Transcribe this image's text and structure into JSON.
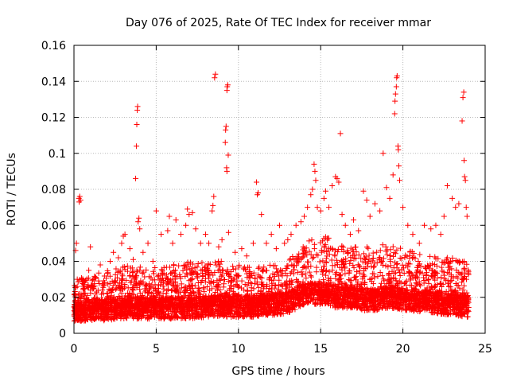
{
  "chart_data": {
    "type": "scatter",
    "title": "Day 076 of 2025, Rate Of TEC Index for receiver mmar",
    "xlabel": "GPS time / hours",
    "ylabel": "ROTI / TECUs",
    "xlim": [
      0,
      25
    ],
    "ylim": [
      0,
      0.16
    ],
    "x_ticks": [
      0,
      5,
      10,
      15,
      20,
      25
    ],
    "x_tick_labels": [
      "0",
      "5",
      "10",
      "15",
      "20",
      "25"
    ],
    "y_ticks": [
      0,
      0.02,
      0.04,
      0.06,
      0.08,
      0.1,
      0.12,
      0.14,
      0.16
    ],
    "y_tick_labels": [
      "0",
      "0.02",
      "0.04",
      "0.06",
      "0.08",
      "0.1",
      "0.12",
      "0.14",
      "0.16"
    ],
    "grid": true,
    "marker": "+",
    "color": "#ff0000",
    "series": [
      {
        "name": "ROTI",
        "points": [
          [
            0.1,
            0.046
          ],
          [
            0.15,
            0.05
          ],
          [
            0.3,
            0.075
          ],
          [
            0.32,
            0.073
          ],
          [
            0.35,
            0.076
          ],
          [
            0.4,
            0.074
          ],
          [
            0.2,
            0.03
          ],
          [
            0.6,
            0.025
          ],
          [
            0.9,
            0.035
          ],
          [
            1.0,
            0.048
          ],
          [
            1.3,
            0.031
          ],
          [
            1.6,
            0.038
          ],
          [
            2.0,
            0.022
          ],
          [
            2.2,
            0.04
          ],
          [
            2.4,
            0.045
          ],
          [
            2.7,
            0.042
          ],
          [
            2.9,
            0.05
          ],
          [
            3.0,
            0.054
          ],
          [
            3.1,
            0.055
          ],
          [
            3.4,
            0.047
          ],
          [
            3.6,
            0.041
          ],
          [
            3.75,
            0.086
          ],
          [
            3.8,
            0.104
          ],
          [
            3.82,
            0.116
          ],
          [
            3.85,
            0.124
          ],
          [
            3.87,
            0.126
          ],
          [
            3.9,
            0.062
          ],
          [
            3.95,
            0.064
          ],
          [
            4.0,
            0.058
          ],
          [
            4.2,
            0.045
          ],
          [
            4.5,
            0.05
          ],
          [
            4.8,
            0.04
          ],
          [
            5.0,
            0.068
          ],
          [
            5.3,
            0.055
          ],
          [
            5.7,
            0.057
          ],
          [
            5.8,
            0.065
          ],
          [
            6.0,
            0.05
          ],
          [
            6.2,
            0.063
          ],
          [
            6.5,
            0.055
          ],
          [
            6.8,
            0.06
          ],
          [
            6.9,
            0.069
          ],
          [
            7.0,
            0.066
          ],
          [
            7.2,
            0.067
          ],
          [
            7.4,
            0.058
          ],
          [
            7.7,
            0.05
          ],
          [
            8.0,
            0.055
          ],
          [
            8.2,
            0.05
          ],
          [
            8.4,
            0.068
          ],
          [
            8.45,
            0.071
          ],
          [
            8.5,
            0.076
          ],
          [
            8.55,
            0.142
          ],
          [
            8.6,
            0.144
          ],
          [
            8.8,
            0.048
          ],
          [
            9.0,
            0.052
          ],
          [
            9.2,
            0.106
          ],
          [
            9.22,
            0.113
          ],
          [
            9.25,
            0.115
          ],
          [
            9.28,
            0.092
          ],
          [
            9.3,
            0.09
          ],
          [
            9.3,
            0.135
          ],
          [
            9.32,
            0.137
          ],
          [
            9.35,
            0.138
          ],
          [
            9.38,
            0.099
          ],
          [
            9.4,
            0.056
          ],
          [
            9.8,
            0.045
          ],
          [
            10.2,
            0.047
          ],
          [
            10.5,
            0.043
          ],
          [
            10.9,
            0.05
          ],
          [
            11.1,
            0.084
          ],
          [
            11.15,
            0.077
          ],
          [
            11.2,
            0.078
          ],
          [
            11.4,
            0.066
          ],
          [
            11.7,
            0.05
          ],
          [
            12.0,
            0.055
          ],
          [
            12.3,
            0.047
          ],
          [
            12.5,
            0.06
          ],
          [
            12.8,
            0.05
          ],
          [
            13.0,
            0.052
          ],
          [
            13.2,
            0.055
          ],
          [
            13.5,
            0.06
          ],
          [
            13.8,
            0.062
          ],
          [
            14.0,
            0.065
          ],
          [
            14.2,
            0.07
          ],
          [
            14.4,
            0.077
          ],
          [
            14.5,
            0.08
          ],
          [
            14.6,
            0.094
          ],
          [
            14.65,
            0.09
          ],
          [
            14.7,
            0.085
          ],
          [
            14.8,
            0.07
          ],
          [
            15.0,
            0.068
          ],
          [
            15.2,
            0.075
          ],
          [
            15.3,
            0.079
          ],
          [
            15.5,
            0.07
          ],
          [
            15.7,
            0.082
          ],
          [
            15.9,
            0.087
          ],
          [
            16.0,
            0.086
          ],
          [
            16.1,
            0.084
          ],
          [
            16.2,
            0.111
          ],
          [
            16.3,
            0.066
          ],
          [
            16.5,
            0.06
          ],
          [
            16.8,
            0.055
          ],
          [
            17.0,
            0.063
          ],
          [
            17.3,
            0.057
          ],
          [
            17.6,
            0.079
          ],
          [
            17.8,
            0.074
          ],
          [
            18.0,
            0.065
          ],
          [
            18.3,
            0.072
          ],
          [
            18.6,
            0.068
          ],
          [
            18.8,
            0.1
          ],
          [
            19.0,
            0.081
          ],
          [
            19.2,
            0.075
          ],
          [
            19.4,
            0.088
          ],
          [
            19.5,
            0.122
          ],
          [
            19.52,
            0.129
          ],
          [
            19.55,
            0.133
          ],
          [
            19.6,
            0.137
          ],
          [
            19.62,
            0.142
          ],
          [
            19.65,
            0.143
          ],
          [
            19.7,
            0.104
          ],
          [
            19.72,
            0.102
          ],
          [
            19.75,
            0.093
          ],
          [
            19.8,
            0.085
          ],
          [
            20.0,
            0.07
          ],
          [
            20.3,
            0.06
          ],
          [
            20.6,
            0.055
          ],
          [
            21.0,
            0.05
          ],
          [
            21.3,
            0.06
          ],
          [
            21.7,
            0.058
          ],
          [
            22.0,
            0.06
          ],
          [
            22.3,
            0.055
          ],
          [
            22.5,
            0.065
          ],
          [
            22.7,
            0.082
          ],
          [
            23.0,
            0.075
          ],
          [
            23.2,
            0.07
          ],
          [
            23.4,
            0.072
          ],
          [
            23.6,
            0.118
          ],
          [
            23.65,
            0.131
          ],
          [
            23.7,
            0.134
          ],
          [
            23.72,
            0.096
          ],
          [
            23.75,
            0.087
          ],
          [
            23.8,
            0.085
          ],
          [
            23.85,
            0.07
          ],
          [
            23.9,
            0.065
          ]
        ],
        "dense_band": {
          "x_range": [
            0.0,
            24.0
          ],
          "baseline_profile": [
            [
              0,
              0.012
            ],
            [
              1,
              0.013
            ],
            [
              2,
              0.013
            ],
            [
              3,
              0.014
            ],
            [
              4,
              0.014
            ],
            [
              5,
              0.014
            ],
            [
              6,
              0.014
            ],
            [
              7,
              0.014
            ],
            [
              8,
              0.015
            ],
            [
              9,
              0.015
            ],
            [
              10,
              0.015
            ],
            [
              11,
              0.015
            ],
            [
              12,
              0.016
            ],
            [
              13,
              0.017
            ],
            [
              14,
              0.022
            ],
            [
              15,
              0.022
            ],
            [
              16,
              0.02
            ],
            [
              17,
              0.02
            ],
            [
              18,
              0.018
            ],
            [
              19,
              0.02
            ],
            [
              20,
              0.019
            ],
            [
              21,
              0.018
            ],
            [
              22,
              0.017
            ],
            [
              23,
              0.016
            ],
            [
              24,
              0.015
            ]
          ],
          "upper_envelope": [
            [
              0,
              0.03
            ],
            [
              1,
              0.032
            ],
            [
              2,
              0.035
            ],
            [
              3,
              0.038
            ],
            [
              4,
              0.037
            ],
            [
              5,
              0.037
            ],
            [
              6,
              0.038
            ],
            [
              7,
              0.04
            ],
            [
              8,
              0.04
            ],
            [
              9,
              0.04
            ],
            [
              10,
              0.038
            ],
            [
              11,
              0.038
            ],
            [
              12,
              0.038
            ],
            [
              13,
              0.04
            ],
            [
              14,
              0.05
            ],
            [
              15,
              0.055
            ],
            [
              16,
              0.052
            ],
            [
              17,
              0.048
            ],
            [
              18,
              0.048
            ],
            [
              19,
              0.05
            ],
            [
              20,
              0.047
            ],
            [
              21,
              0.045
            ],
            [
              22,
              0.043
            ],
            [
              23,
              0.042
            ],
            [
              24,
              0.04
            ]
          ],
          "min_value": 0.003
        }
      }
    ]
  }
}
